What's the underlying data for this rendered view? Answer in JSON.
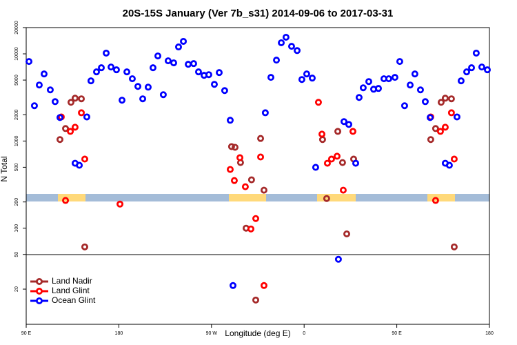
{
  "chart_data": {
    "type": "scatter",
    "title": "20S-15S January (Ver 7b_s31)   2014-09-06 to 2017-03-31",
    "xlabel": "Longitude (deg E)",
    "ylabel": "N Total",
    "xlim": [
      90,
      540
    ],
    "xticks": [
      {
        "value": 90,
        "label": "90 E"
      },
      180,
      {
        "value": 270,
        "label": "90 W"
      },
      {
        "value": 360,
        "label": "0"
      },
      {
        "value": 450,
        "label": "90 E"
      },
      {
        "value": 540,
        "label": "180"
      }
    ],
    "ylim": [
      7.9,
      20000
    ],
    "yticks": [
      20000,
      10000,
      5000,
      2000,
      1000,
      500,
      200,
      100,
      50,
      20
    ],
    "log_y": true,
    "legend": "lower left",
    "series": [
      {
        "name": "Land Nadir",
        "color": "#a52a2a",
        "x": [
          122.8,
          128.2,
          133.5,
          137.5,
          143.6,
          146.9,
          289.5,
          292.9,
          298.2,
          303.6,
          308.9,
          317.7,
          321,
          313,
          377.9,
          381.9,
          392.7,
          397.3,
          401.4,
          408.1,
          483,
          487.7,
          493.1,
          497.1,
          503.1,
          505.8
        ],
        "values": [
          1040,
          1390,
          2780,
          3100,
          3050,
          61,
          863,
          847,
          566,
          100,
          359,
          1070,
          273,
          15,
          1040,
          219,
          1290,
          566,
          86,
          621,
          1040,
          1390,
          2780,
          3100,
          3050,
          61
        ]
      },
      {
        "name": "Land Glint",
        "color": "#ff0000",
        "x": [
          124.1,
          128.2,
          132.9,
          137.5,
          143.6,
          146.9,
          181.1,
          288.2,
          292.2,
          297.6,
          302.9,
          308.3,
          313,
          317.7,
          321,
          373.9,
          377.3,
          382.6,
          386.6,
          392,
          398,
          407.4,
          483,
          487.7,
          492.4,
          497.1,
          503.1,
          505.8
        ],
        "values": [
          1890,
          208,
          1290,
          1440,
          2110,
          621,
          189,
          472,
          352,
          644,
          299,
          98,
          129,
          656,
          22,
          2780,
          1200,
          556,
          621,
          669,
          273,
          1290,
          1890,
          208,
          1290,
          1440,
          2110,
          621
        ]
      },
      {
        "name": "Ocean Glint",
        "color": "#0000ff",
        "x": [
          92.7,
          98,
          102.7,
          107.4,
          113.4,
          118.1,
          122.8,
          137.5,
          141.6,
          148.9,
          152.9,
          158.3,
          163,
          167.7,
          172.4,
          177.7,
          183.1,
          187.8,
          193.1,
          198.5,
          203.2,
          208.5,
          213.2,
          217.9,
          223.2,
          227.9,
          233.3,
          238,
          242.7,
          247.4,
          252.7,
          257.4,
          262.8,
          267.4,
          272.8,
          277.5,
          282.8,
          288.2,
          290.9,
          322.3,
          327.7,
          333.1,
          337.8,
          342.4,
          347.8,
          353.2,
          357.8,
          362.5,
          367.9,
          371.2,
          393.3,
          398.7,
          403.4,
          410.1,
          413.4,
          417.4,
          422.8,
          427.5,
          432.2,
          437.5,
          442.2,
          448.2,
          452.9,
          457.6,
          463,
          467.6,
          473,
          477.7,
          482.4,
          497.1,
          501.1,
          508.5,
          512.5,
          517.9,
          522.6,
          527.2,
          532.6,
          538
        ],
        "values": [
          8170,
          2540,
          4390,
          5880,
          3860,
          2830,
          1860,
          556,
          527,
          1890,
          4900,
          6210,
          6930,
          10200,
          7060,
          6560,
          2940,
          6210,
          5180,
          4230,
          3050,
          4150,
          6930,
          9460,
          3400,
          8320,
          7880,
          12000,
          13900,
          7590,
          7730,
          6210,
          5670,
          5770,
          4470,
          6100,
          3790,
          1730,
          22,
          2110,
          5370,
          8470,
          13400,
          15500,
          12200,
          10900,
          5080,
          5880,
          5270,
          499,
          44,
          1670,
          1550,
          556,
          3160,
          4080,
          4810,
          3930,
          4010,
          5180,
          5180,
          5370,
          8170,
          2540,
          4390,
          5880,
          3860,
          2830,
          1860,
          556,
          527,
          1890,
          4900,
          6210,
          6930,
          10200,
          7060,
          6560
        ]
      }
    ]
  }
}
